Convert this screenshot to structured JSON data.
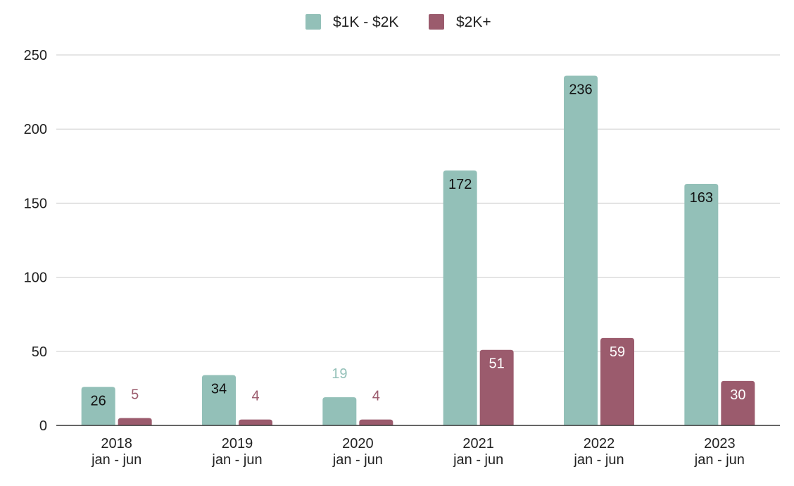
{
  "chart_data": {
    "type": "bar",
    "categories": [
      [
        "2018",
        "jan - jun"
      ],
      [
        "2019",
        "jan - jun"
      ],
      [
        "2020",
        "jan - jun"
      ],
      [
        "2021",
        "jan - jun"
      ],
      [
        "2022",
        "jan - jun"
      ],
      [
        "2023",
        "jan - jun"
      ]
    ],
    "series": [
      {
        "name": "$1K - $2K",
        "color": "#93c0b8",
        "values": [
          26,
          34,
          19,
          172,
          236,
          163
        ]
      },
      {
        "name": "$2K+",
        "color": "#9b5b6d",
        "values": [
          5,
          4,
          4,
          51,
          59,
          30
        ]
      }
    ],
    "ylim": [
      0,
      250
    ],
    "yticks": [
      0,
      50,
      100,
      150,
      200,
      250
    ],
    "grid": true,
    "legend_position": "top-center",
    "data_labels": true
  }
}
